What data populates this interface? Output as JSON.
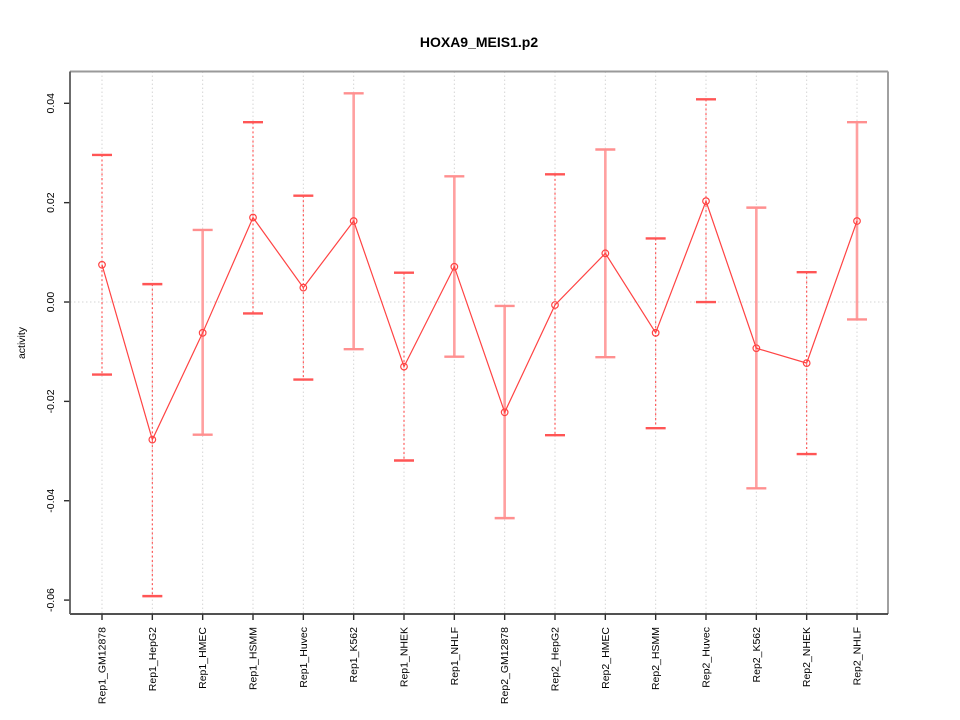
{
  "chart_data": {
    "type": "line",
    "title": "HOXA9_MEIS1.p2",
    "ylabel": "activity",
    "xlabel": "",
    "legend_position": "none",
    "categories": [
      "Rep1_GM12878",
      "Rep1_HepG2",
      "Rep1_HMEC",
      "Rep1_HSMM",
      "Rep1_Huvec",
      "Rep1_K562",
      "Rep1_NHEK",
      "Rep1_NHLF",
      "Rep2_GM12878",
      "Rep2_HepG2",
      "Rep2_HMEC",
      "Rep2_HSMM",
      "Rep2_Huvec",
      "Rep2_K562",
      "Rep2_NHEK",
      "Rep2_NHLF"
    ],
    "series": [
      {
        "name": "activity",
        "values": [
          0.0075,
          -0.0277,
          -0.0062,
          0.017,
          0.0029,
          0.0163,
          -0.013,
          0.0071,
          -0.0222,
          -0.0006,
          0.0098,
          -0.0062,
          0.0203,
          -0.0093,
          -0.0123,
          0.0163
        ],
        "error_upper": [
          0.0296,
          0.0036,
          0.0145,
          0.0362,
          0.0214,
          0.042,
          0.0059,
          0.0253,
          -0.0008,
          0.0257,
          0.0307,
          0.0128,
          0.0408,
          0.019,
          0.006,
          0.0362
        ],
        "error_lower": [
          -0.0146,
          -0.0592,
          -0.0267,
          -0.0023,
          -0.0156,
          -0.0095,
          -0.0319,
          -0.011,
          -0.0435,
          -0.0268,
          -0.0111,
          -0.0254,
          0.0,
          -0.0375,
          -0.0306,
          -0.0035
        ],
        "error_bar_styles": [
          "dotted",
          "dotted",
          "solid",
          "dotted",
          "dotted",
          "solid",
          "dotted",
          "solid",
          "solid",
          "dotted",
          "solid",
          "dotted",
          "dotted",
          "solid",
          "dotted",
          "solid"
        ]
      }
    ],
    "ytick_values": [
      0.04,
      0.02,
      0.0,
      -0.02,
      -0.04,
      -0.06
    ],
    "ytick_labels": [
      "0.04",
      "0.02",
      "0.00",
      "-0.02",
      "-0.04",
      "-0.06"
    ],
    "ylim": [
      -0.0628,
      0.0464
    ],
    "grid": {
      "vertical_dotted": true,
      "horizontal_zero_line_dotted": true
    },
    "marker": "open-circle",
    "colors": {
      "series_line": "#ff4343",
      "marker_stroke": "#ff4343",
      "errorbar_dotted": "#ff4d4d",
      "errorbar_dotted_cap": "#ff5555",
      "errorbar_solid": "#ffa0a0",
      "errorbar_solid_cap": "#ff8f8f",
      "gridline": "#d6d6d6",
      "box_top": "#9a9a9a",
      "box_right": "#a0a0a0",
      "box_bottom": "#383838",
      "box_left": "#5c5c5c",
      "tick": "#2b2b2b",
      "background": "#ffffff"
    }
  }
}
